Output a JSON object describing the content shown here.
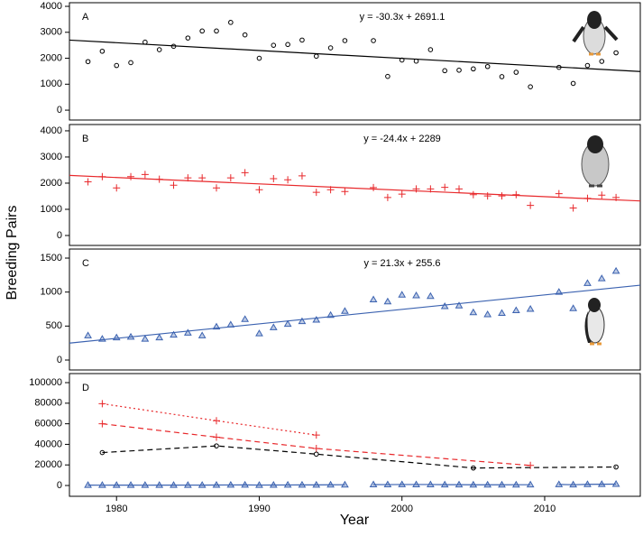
{
  "ylabel": "Breeding Pairs",
  "xlabel": "Year",
  "chart_data": [
    {
      "type": "scatter",
      "panel": "A",
      "xlim": [
        1976.7,
        2016.7
      ],
      "ylim": [
        -380,
        4140
      ],
      "yticks": [
        0,
        1000,
        2000,
        3000,
        4000
      ],
      "series": [
        {
          "color": "#000000",
          "marker": "circle",
          "x": [
            1978,
            1979,
            1980,
            1981,
            1982,
            1983,
            1984,
            1985,
            1986,
            1987,
            1988,
            1989,
            1990,
            1991,
            1992,
            1993,
            1994,
            1995,
            1996,
            1997,
            1998,
            1999,
            2000,
            2001,
            2002,
            2003,
            2004,
            2005,
            2006,
            2007,
            2008,
            2009,
            2010,
            2011,
            2012,
            2013,
            2014,
            2015
          ],
          "values": [
            1870,
            2270,
            1720,
            1830,
            2620,
            2330,
            2460,
            2780,
            3050,
            3050,
            3380,
            2900,
            2000,
            2500,
            2530,
            2700,
            2080,
            2400,
            2680,
            null,
            2680,
            1300,
            1930,
            1890,
            2330,
            1520,
            1540,
            1590,
            1680,
            1290,
            1460,
            900,
            null,
            1650,
            1030,
            1720,
            1880,
            2210
          ]
        }
      ],
      "fit": {
        "label": "y = -30.3x + 2691.1",
        "color": "#000000",
        "x": [
          1976.7,
          2016.7
        ],
        "values": [
          2700,
          1488
        ]
      }
    },
    {
      "type": "scatter",
      "panel": "B",
      "xlim": [
        1976.7,
        2016.7
      ],
      "ylim": [
        -380,
        4240
      ],
      "yticks": [
        0,
        1000,
        2000,
        3000,
        4000
      ],
      "series": [
        {
          "color": "#e8282b",
          "marker": "plus",
          "x": [
            1978,
            1979,
            1980,
            1981,
            1982,
            1983,
            1984,
            1985,
            1986,
            1987,
            1988,
            1989,
            1990,
            1991,
            1992,
            1993,
            1994,
            1995,
            1996,
            1997,
            1998,
            1999,
            2000,
            2001,
            2002,
            2003,
            2004,
            2005,
            2006,
            2007,
            2008,
            2009,
            2010,
            2011,
            2012,
            2013,
            2014,
            2015
          ],
          "values": [
            2050,
            2250,
            1820,
            2250,
            2330,
            2150,
            1920,
            2200,
            2200,
            1820,
            2200,
            2400,
            1750,
            2170,
            2130,
            2280,
            1650,
            1750,
            1680,
            null,
            1830,
            1450,
            1580,
            1780,
            1780,
            1840,
            1780,
            1560,
            1510,
            1510,
            1560,
            1150,
            null,
            1600,
            1050,
            1420,
            1540,
            1450
          ]
        }
      ],
      "fit": {
        "label": "y = -24.4x + 2289",
        "color": "#e8282b",
        "x": [
          1976.7,
          2016.7
        ],
        "values": [
          2296,
          1320
        ]
      }
    },
    {
      "type": "scatter",
      "panel": "C",
      "xlim": [
        1976.7,
        2016.7
      ],
      "ylim": [
        -146,
        1633
      ],
      "yticks": [
        0,
        500,
        1000,
        1500
      ],
      "series": [
        {
          "color": "#3b62b0",
          "marker": "triangle",
          "x": [
            1978,
            1979,
            1980,
            1981,
            1982,
            1983,
            1984,
            1985,
            1986,
            1987,
            1988,
            1989,
            1990,
            1991,
            1992,
            1993,
            1994,
            1995,
            1996,
            1997,
            1998,
            1999,
            2000,
            2001,
            2002,
            2003,
            2004,
            2005,
            2006,
            2007,
            2008,
            2009,
            2010,
            2011,
            2012,
            2013,
            2014,
            2015
          ],
          "values": [
            360,
            310,
            330,
            340,
            310,
            330,
            370,
            400,
            360,
            490,
            520,
            600,
            390,
            480,
            530,
            570,
            590,
            660,
            720,
            null,
            890,
            860,
            960,
            950,
            940,
            790,
            800,
            700,
            670,
            690,
            730,
            750,
            null,
            1000,
            760,
            1130,
            1200,
            1310
          ]
        }
      ],
      "fit": {
        "label": "y = 21.3x + 255.6",
        "color": "#3b62b0",
        "x": [
          1976.7,
          2016.7
        ],
        "values": [
          249,
          1101
        ]
      }
    },
    {
      "type": "line",
      "panel": "D",
      "xlim": [
        1976.7,
        2016.7
      ],
      "ylim": [
        -10500,
        108800
      ],
      "yticks": [
        0,
        20000,
        40000,
        60000,
        80000,
        100000
      ],
      "xticks": [
        1980,
        1990,
        2000,
        2010
      ],
      "series": [
        {
          "color": "#e8282b",
          "marker": "plus",
          "linestyle": "dotted",
          "x": [
            1979,
            1987,
            1994
          ],
          "values": [
            79500,
            63000,
            49000
          ]
        },
        {
          "color": "#e8282b",
          "marker": "plus",
          "linestyle": "dashed",
          "x": [
            1979,
            1987,
            1994,
            2009
          ],
          "values": [
            60000,
            47000,
            36000,
            19500
          ]
        },
        {
          "color": "#000000",
          "marker": "circle",
          "linestyle": "dashed",
          "x": [
            1979,
            1987,
            1994,
            2005,
            2015
          ],
          "values": [
            32000,
            38500,
            30500,
            17000,
            18000
          ]
        },
        {
          "color": "#3b62b0",
          "marker": "triangle",
          "linestyle": "solid",
          "x": [
            1978,
            1979,
            1980,
            1981,
            1982,
            1983,
            1984,
            1985,
            1986,
            1987,
            1988,
            1989,
            1990,
            1991,
            1992,
            1993,
            1994,
            1995,
            1996,
            1997,
            1998,
            1999,
            2000,
            2001,
            2002,
            2003,
            2004,
            2005,
            2006,
            2007,
            2008,
            2009,
            2010,
            2011,
            2012,
            2013,
            2014,
            2015
          ],
          "values": [
            360,
            310,
            330,
            340,
            310,
            330,
            370,
            400,
            360,
            490,
            520,
            600,
            390,
            480,
            530,
            570,
            590,
            660,
            720,
            null,
            890,
            860,
            960,
            950,
            940,
            790,
            800,
            700,
            670,
            690,
            730,
            750,
            null,
            1000,
            760,
            1130,
            1200,
            1310
          ]
        }
      ]
    }
  ]
}
